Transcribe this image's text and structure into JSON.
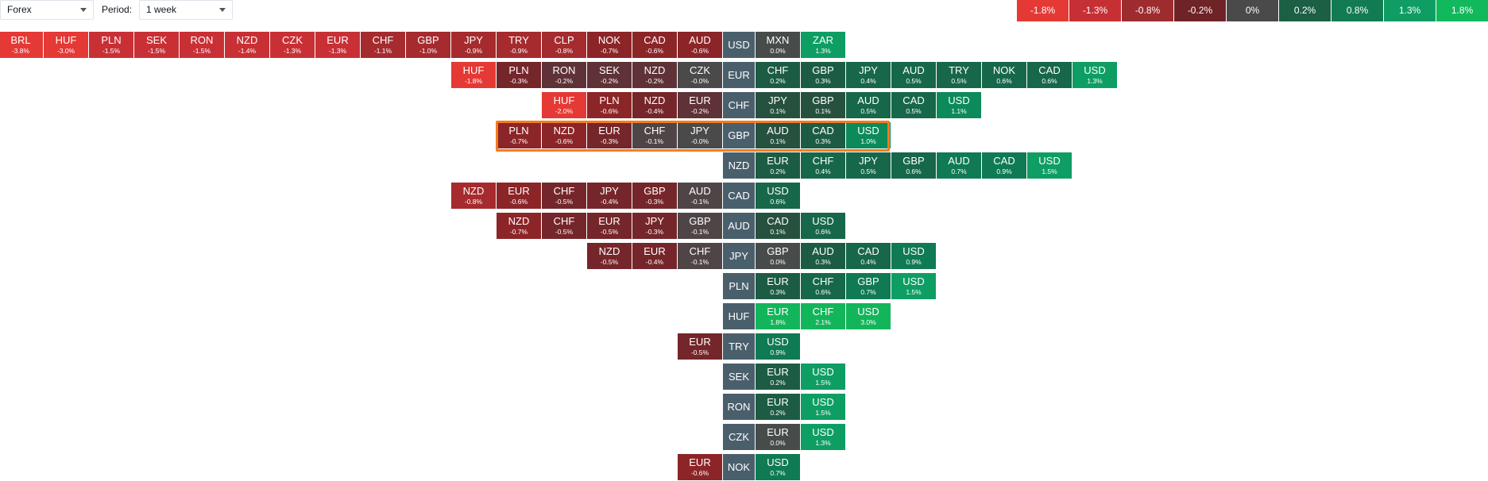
{
  "toolbar": {
    "market_select": {
      "value": "Forex",
      "icon": "chevron-down-icon"
    },
    "period_label": "Period:",
    "period_select": {
      "value": "1 week",
      "icon": "chevron-down-icon"
    }
  },
  "legend": [
    {
      "label": "-1.8%",
      "color": "#e53935"
    },
    {
      "label": "-1.3%",
      "color": "#c62f33"
    },
    {
      "label": "-0.8%",
      "color": "#9e2b2e"
    },
    {
      "label": "-0.2%",
      "color": "#6e2327"
    },
    {
      "label": "0%",
      "color": "#4a4a4a"
    },
    {
      "label": "0.2%",
      "color": "#1b5f45"
    },
    {
      "label": "0.8%",
      "color": "#137b52"
    },
    {
      "label": "1.3%",
      "color": "#0f9d63"
    },
    {
      "label": "1.8%",
      "color": "#12b85c"
    }
  ],
  "rows": [
    {
      "base": "USD",
      "left": [
        [
          "BRL",
          "-3.8%"
        ],
        [
          "HUF",
          "-3.0%"
        ],
        [
          "PLN",
          "-1.5%"
        ],
        [
          "SEK",
          "-1.5%"
        ],
        [
          "RON",
          "-1.5%"
        ],
        [
          "NZD",
          "-1.4%"
        ],
        [
          "CZK",
          "-1.3%"
        ],
        [
          "EUR",
          "-1.3%"
        ],
        [
          "CHF",
          "-1.1%"
        ],
        [
          "GBP",
          "-1.0%"
        ],
        [
          "JPY",
          "-0.9%"
        ],
        [
          "TRY",
          "-0.9%"
        ],
        [
          "CLP",
          "-0.8%"
        ],
        [
          "NOK",
          "-0.7%"
        ],
        [
          "CAD",
          "-0.6%"
        ],
        [
          "AUD",
          "-0.6%"
        ]
      ],
      "right": [
        [
          "MXN",
          "0.0%"
        ],
        [
          "ZAR",
          "1.3%"
        ]
      ]
    },
    {
      "base": "EUR",
      "left": [
        [
          "HUF",
          "-1.8%"
        ],
        [
          "PLN",
          "-0.3%"
        ],
        [
          "RON",
          "-0.2%"
        ],
        [
          "SEK",
          "-0.2%"
        ],
        [
          "NZD",
          "-0.2%"
        ],
        [
          "CZK",
          "-0.0%"
        ]
      ],
      "right": [
        [
          "CHF",
          "0.2%"
        ],
        [
          "GBP",
          "0.3%"
        ],
        [
          "JPY",
          "0.4%"
        ],
        [
          "AUD",
          "0.5%"
        ],
        [
          "TRY",
          "0.5%"
        ],
        [
          "NOK",
          "0.6%"
        ],
        [
          "CAD",
          "0.6%"
        ],
        [
          "USD",
          "1.3%"
        ]
      ]
    },
    {
      "base": "CHF",
      "left": [
        [
          "HUF",
          "-2.0%"
        ],
        [
          "PLN",
          "-0.6%"
        ],
        [
          "NZD",
          "-0.4%"
        ],
        [
          "EUR",
          "-0.2%"
        ]
      ],
      "right": [
        [
          "JPY",
          "0.1%"
        ],
        [
          "GBP",
          "0.1%"
        ],
        [
          "AUD",
          "0.5%"
        ],
        [
          "CAD",
          "0.5%"
        ],
        [
          "USD",
          "1.1%"
        ]
      ]
    },
    {
      "base": "GBP",
      "left": [
        [
          "PLN",
          "-0.7%"
        ],
        [
          "NZD",
          "-0.6%"
        ],
        [
          "EUR",
          "-0.3%"
        ],
        [
          "CHF",
          "-0.1%"
        ],
        [
          "JPY",
          "-0.0%"
        ]
      ],
      "right": [
        [
          "AUD",
          "0.1%"
        ],
        [
          "CAD",
          "0.3%"
        ],
        [
          "USD",
          "1.0%"
        ]
      ]
    },
    {
      "base": "NZD",
      "left": [],
      "right": [
        [
          "EUR",
          "0.2%"
        ],
        [
          "CHF",
          "0.4%"
        ],
        [
          "JPY",
          "0.5%"
        ],
        [
          "GBP",
          "0.6%"
        ],
        [
          "AUD",
          "0.7%"
        ],
        [
          "CAD",
          "0.9%"
        ],
        [
          "USD",
          "1.5%"
        ]
      ]
    },
    {
      "base": "CAD",
      "left": [
        [
          "NZD",
          "-0.8%"
        ],
        [
          "EUR",
          "-0.6%"
        ],
        [
          "CHF",
          "-0.5%"
        ],
        [
          "JPY",
          "-0.4%"
        ],
        [
          "GBP",
          "-0.3%"
        ],
        [
          "AUD",
          "-0.1%"
        ]
      ],
      "right": [
        [
          "USD",
          "0.6%"
        ]
      ]
    },
    {
      "base": "AUD",
      "left": [
        [
          "NZD",
          "-0.7%"
        ],
        [
          "CHF",
          "-0.5%"
        ],
        [
          "EUR",
          "-0.5%"
        ],
        [
          "JPY",
          "-0.3%"
        ],
        [
          "GBP",
          "-0.1%"
        ]
      ],
      "right": [
        [
          "CAD",
          "0.1%"
        ],
        [
          "USD",
          "0.6%"
        ]
      ]
    },
    {
      "base": "JPY",
      "left": [
        [
          "NZD",
          "-0.5%"
        ],
        [
          "EUR",
          "-0.4%"
        ],
        [
          "CHF",
          "-0.1%"
        ]
      ],
      "right": [
        [
          "GBP",
          "0.0%"
        ],
        [
          "AUD",
          "0.3%"
        ],
        [
          "CAD",
          "0.4%"
        ],
        [
          "USD",
          "0.9%"
        ]
      ]
    },
    {
      "base": "PLN",
      "left": [],
      "right": [
        [
          "EUR",
          "0.3%"
        ],
        [
          "CHF",
          "0.6%"
        ],
        [
          "GBP",
          "0.7%"
        ],
        [
          "USD",
          "1.5%"
        ]
      ]
    },
    {
      "base": "HUF",
      "left": [],
      "right": [
        [
          "EUR",
          "1.8%"
        ],
        [
          "CHF",
          "2.1%"
        ],
        [
          "USD",
          "3.0%"
        ]
      ]
    },
    {
      "base": "TRY",
      "left": [
        [
          "EUR",
          "-0.5%"
        ]
      ],
      "right": [
        [
          "USD",
          "0.9%"
        ]
      ]
    },
    {
      "base": "SEK",
      "left": [],
      "right": [
        [
          "EUR",
          "0.2%"
        ],
        [
          "USD",
          "1.5%"
        ]
      ]
    },
    {
      "base": "RON",
      "left": [],
      "right": [
        [
          "EUR",
          "0.2%"
        ],
        [
          "USD",
          "1.5%"
        ]
      ]
    },
    {
      "base": "CZK",
      "left": [],
      "right": [
        [
          "EUR",
          "0.0%"
        ],
        [
          "USD",
          "1.3%"
        ]
      ]
    },
    {
      "base": "NOK",
      "left": [
        [
          "EUR",
          "-0.6%"
        ]
      ],
      "right": [
        [
          "USD",
          "0.7%"
        ]
      ]
    }
  ],
  "highlighted_row": "GBP"
}
